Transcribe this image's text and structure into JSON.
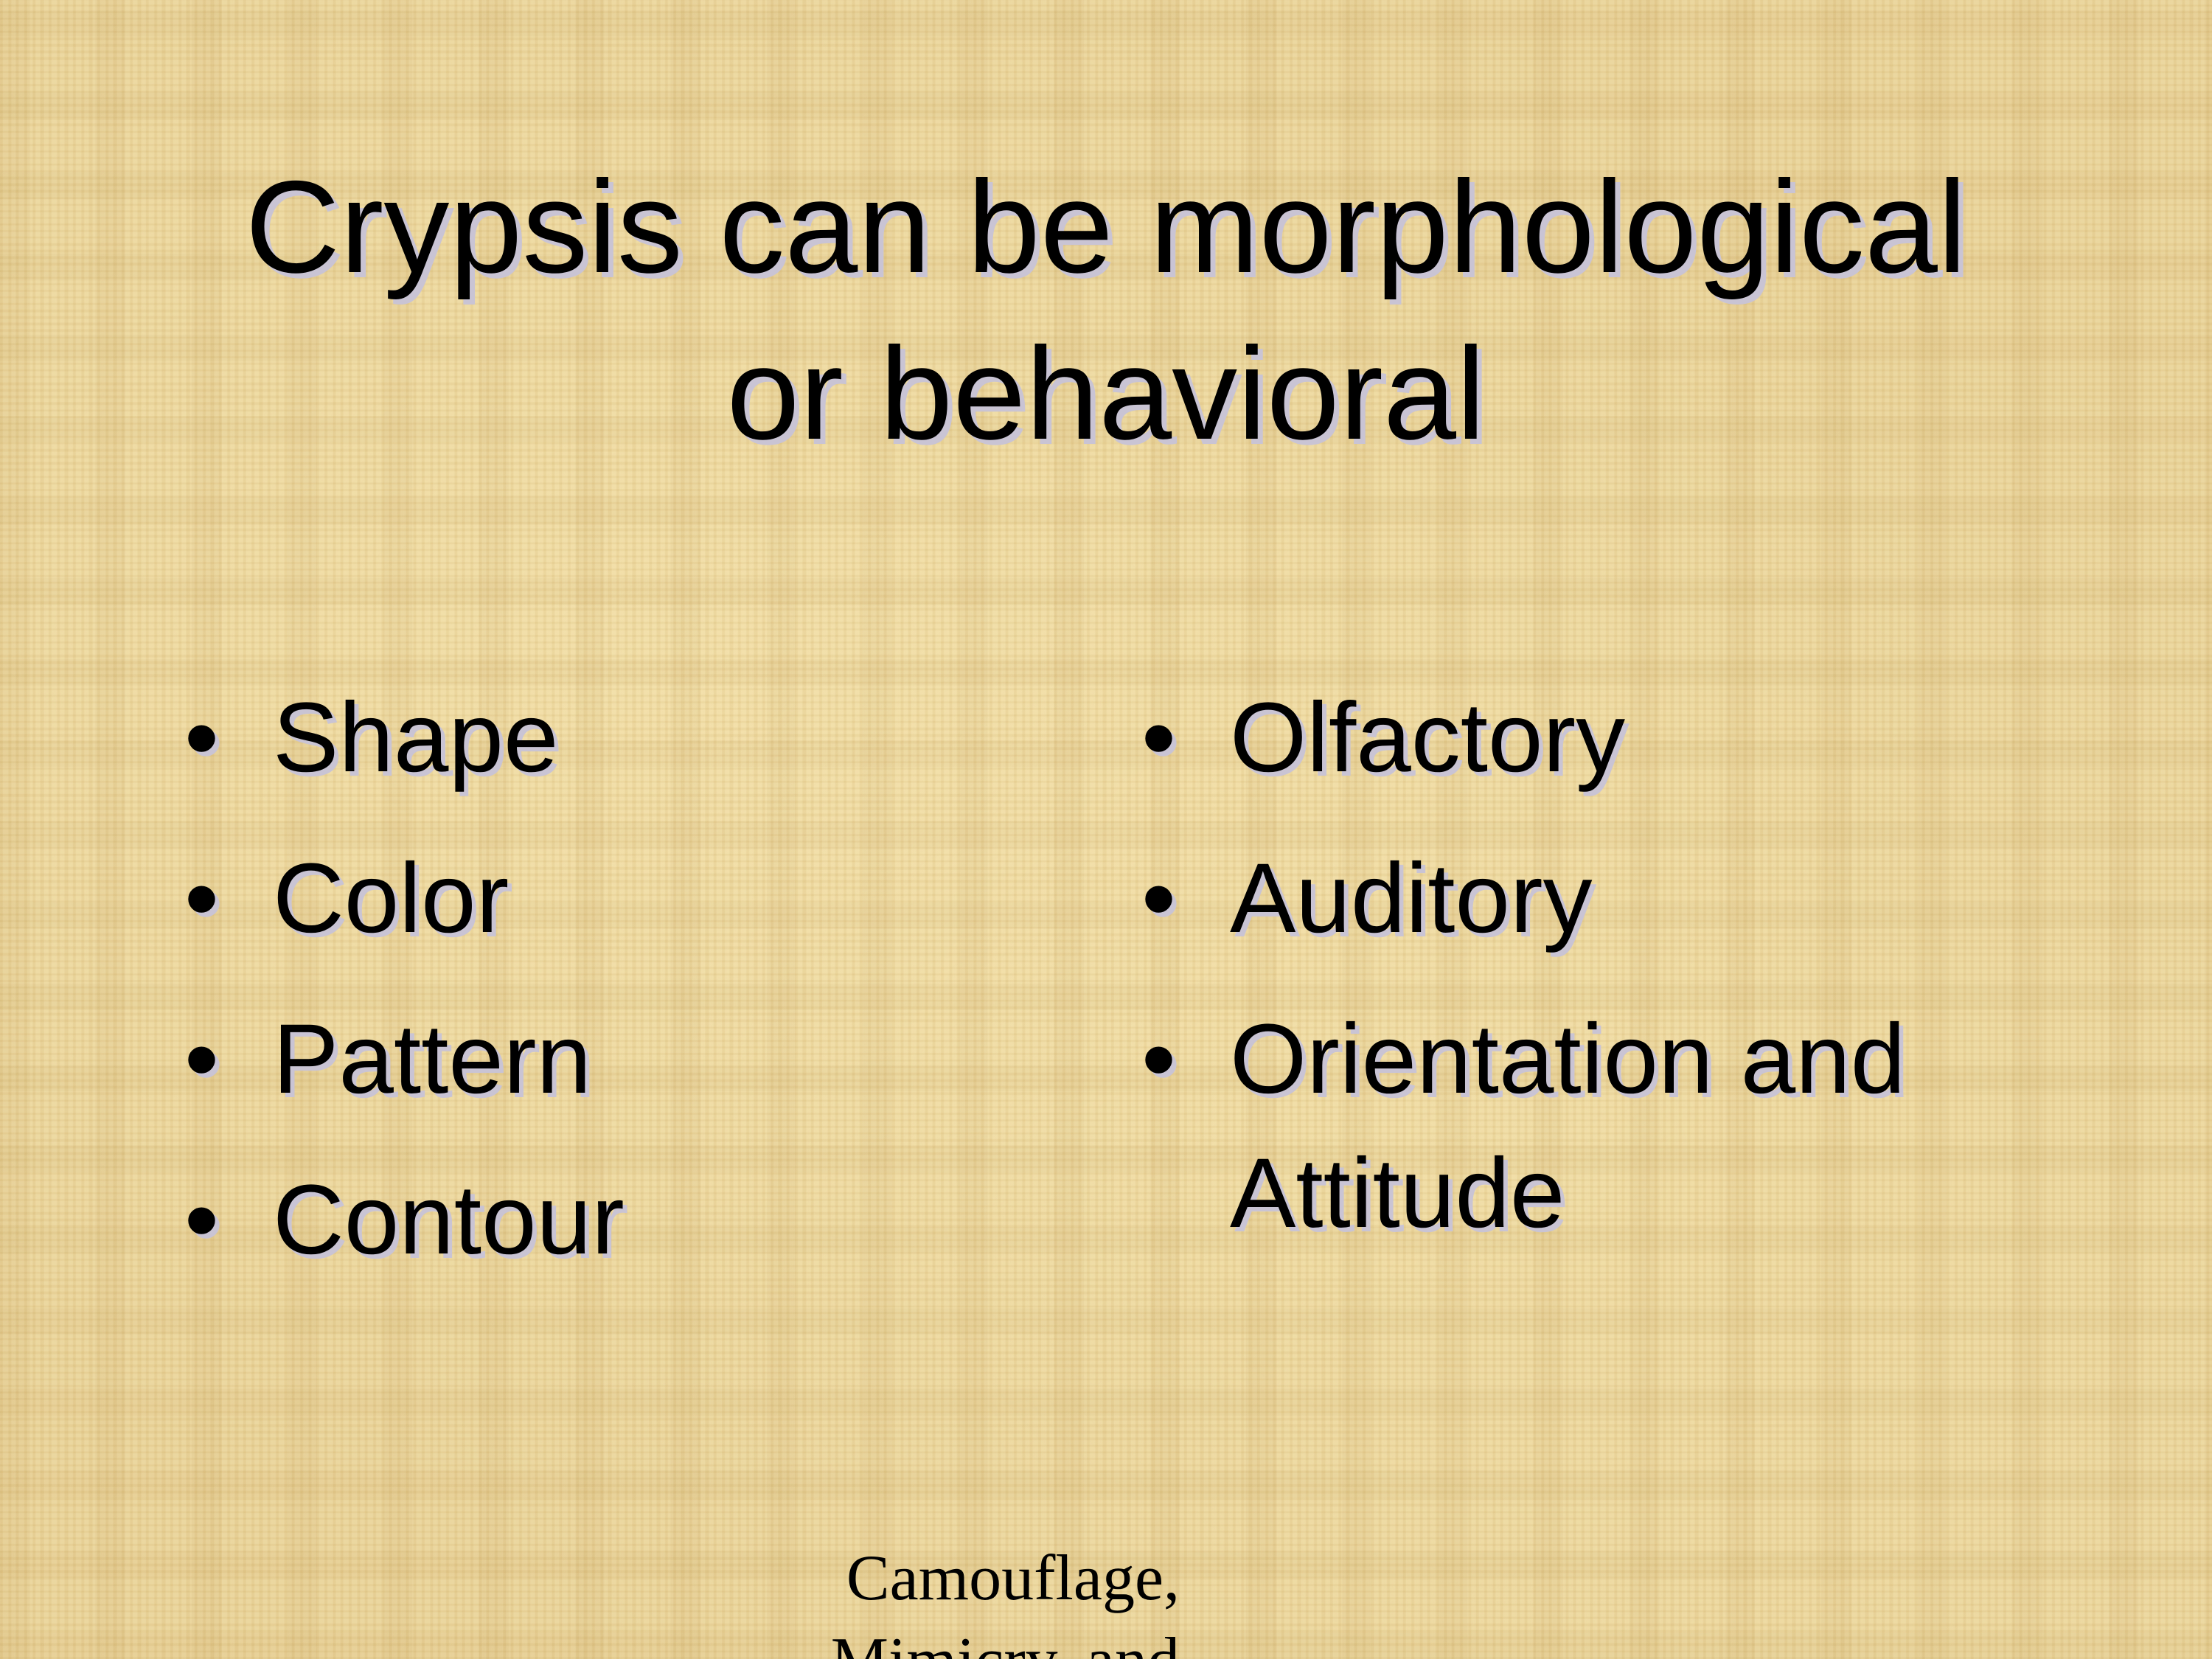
{
  "slide": {
    "title_lines": [
      "Crypsis can be morphological",
      "or behavioral"
    ],
    "left_items": [
      "Shape",
      "Color",
      "Pattern",
      "Contour"
    ],
    "right_items": [
      "Olfactory",
      "Auditory",
      "Orientation and Attitude"
    ],
    "bullet_char": "•",
    "footer_lines": [
      "Camouflage,",
      "Mimicry, and"
    ]
  },
  "colors": {
    "background": "#e9d39a",
    "text": "#000000",
    "shadow": "#c9c4d4"
  }
}
